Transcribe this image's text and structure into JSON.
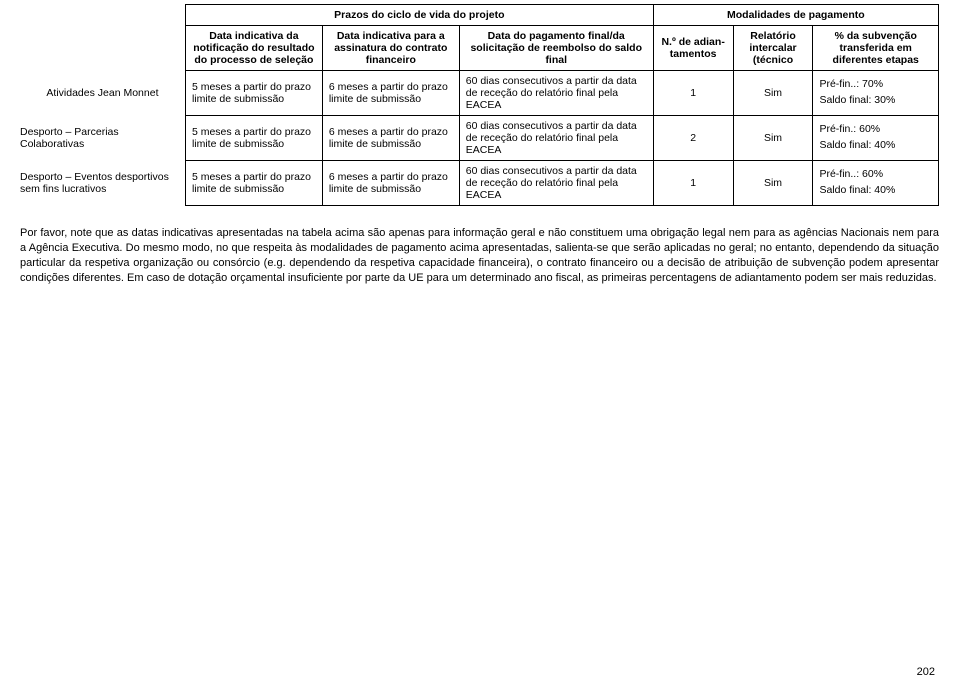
{
  "table": {
    "header_groups": {
      "prazos": "Prazos do ciclo de vida do projeto",
      "modalidades": "Modalidades de pagamento"
    },
    "columns": {
      "c1": "Data indicativa da notificação do resultado do processo de seleção",
      "c2": "Data indicativa para a assinatura do contrato financeiro",
      "c3": "Data do pagamento final/da solicitação de reembolso do saldo final",
      "c4": "N.º de adian-\ntamentos",
      "c5": "Relatório intercalar (técnico",
      "c6": "% da subvenção transferida em diferentes etapas"
    },
    "rows": [
      {
        "label": "Atividades Jean Monnet",
        "c1": "5 meses a partir do prazo limite de submissão",
        "c2": "6 meses a partir do prazo limite de submissão",
        "c3": "60 dias consecutivos a partir da data de receção do relatório final pela EACEA",
        "c4": "1",
        "c5": "Sim",
        "c6a": "Pré-fin..: 70%",
        "c6b": "Saldo final: 30%"
      },
      {
        "label": "Desporto – Parcerias Colaborativas",
        "c1": "5 meses a partir do prazo limite de submissão",
        "c2": "6 meses a partir do prazo limite de submissão",
        "c3": "60 dias consecutivos a partir da data de receção do relatório final pela EACEA",
        "c4": "2",
        "c5": "Sim",
        "c6a": "Pré-fin.: 60%",
        "c6b": "Saldo final: 40%"
      },
      {
        "label": "Desporto – Eventos desportivos sem fins lucrativos",
        "c1": "5 meses a partir do prazo limite de submissão",
        "c2": "6 meses a partir do prazo limite de submissão",
        "c3": "60 dias consecutivos a partir da data de receção do relatório final pela EACEA",
        "c4": "1",
        "c5": "Sim",
        "c6a": "Pré-fin..: 60%",
        "c6b": "Saldo final: 40%"
      }
    ]
  },
  "note": "Por favor, note que as datas indicativas apresentadas na tabela acima são apenas para informação geral e não constituem uma obrigação legal nem para as agências Nacionais nem para a Agência Executiva. Do mesmo modo, no que respeita às modalidades de pagamento acima apresentadas, salienta-se que serão aplicadas no geral; no entanto, dependendo da situação particular da respetiva organização ou consórcio (e.g. dependendo da respetiva capacidade financeira), o contrato financeiro ou a decisão de atribuição de subvenção podem apresentar condições diferentes. Em caso de dotação orçamental insuficiente por parte da UE para um determinado ano fiscal, as primeiras percentagens de adiantamento podem ser mais reduzidas.",
  "page_number": "202"
}
